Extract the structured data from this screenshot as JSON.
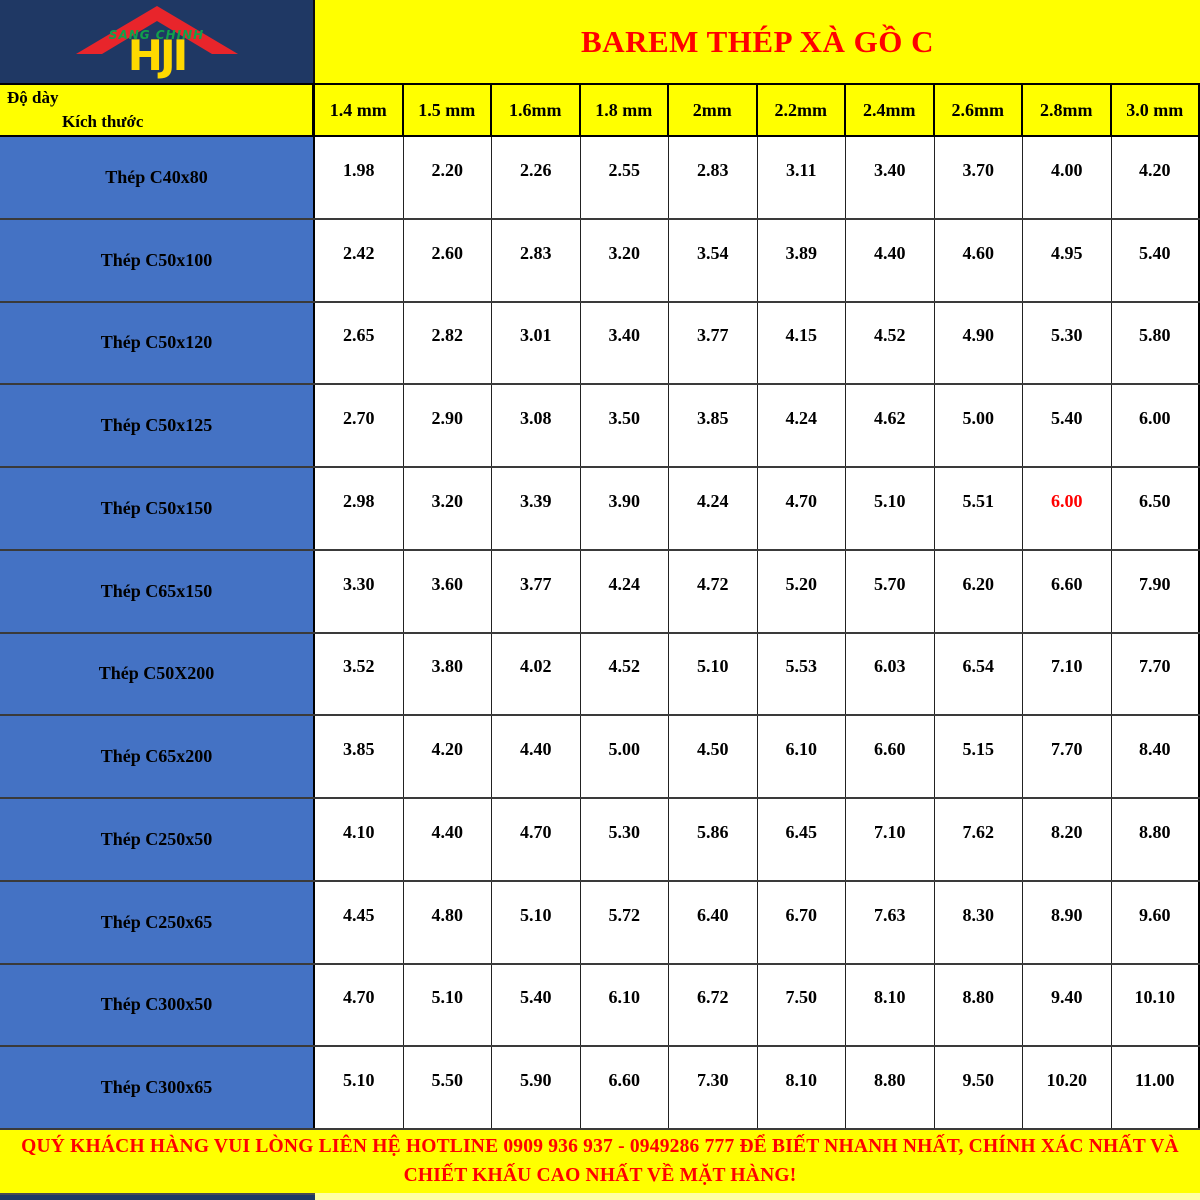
{
  "logo": {
    "brand_top": "SANG CHINH",
    "brand_main": "HJI",
    "roof_color": "#E8252B",
    "background": "#1F3864"
  },
  "title": "BAREM THÉP XÀ GỒ C",
  "corner": {
    "top_label": "Độ dày",
    "bottom_label": "Kích thước"
  },
  "columns": [
    "1.4 mm",
    "1.5 mm",
    "1.6mm",
    "1.8 mm",
    "2mm",
    "2.2mm",
    "2.4mm",
    "2.6mm",
    "2.8mm",
    "3.0 mm"
  ],
  "rows": [
    {
      "label": "Thép C40x80",
      "values": [
        "1.98",
        "2.20",
        "2.26",
        "2.55",
        "2.83",
        "3.11",
        "3.40",
        "3.70",
        "4.00",
        "4.20"
      ]
    },
    {
      "label": "Thép C50x100",
      "values": [
        "2.42",
        "2.60",
        "2.83",
        "3.20",
        "3.54",
        "3.89",
        "4.40",
        "4.60",
        "4.95",
        "5.40"
      ]
    },
    {
      "label": "Thép C50x120",
      "values": [
        "2.65",
        "2.82",
        "3.01",
        "3.40",
        "3.77",
        "4.15",
        "4.52",
        "4.90",
        "5.30",
        "5.80"
      ]
    },
    {
      "label": "Thép C50x125",
      "values": [
        "2.70",
        "2.90",
        "3.08",
        "3.50",
        "3.85",
        "4.24",
        "4.62",
        "5.00",
        "5.40",
        "6.00"
      ]
    },
    {
      "label": "Thép C50x150",
      "values": [
        "2.98",
        "3.20",
        "3.39",
        "3.90",
        "4.24",
        "4.70",
        "5.10",
        "5.51",
        "6.00",
        "6.50"
      ]
    },
    {
      "label": "Thép C65x150",
      "values": [
        "3.30",
        "3.60",
        "3.77",
        "4.24",
        "4.72",
        "5.20",
        "5.70",
        "6.20",
        "6.60",
        "7.90"
      ]
    },
    {
      "label": "Thép C50X200",
      "values": [
        "3.52",
        "3.80",
        "4.02",
        "4.52",
        "5.10",
        "5.53",
        "6.03",
        "6.54",
        "7.10",
        "7.70"
      ]
    },
    {
      "label": "Thép C65x200",
      "values": [
        "3.85",
        "4.20",
        "4.40",
        "5.00",
        "4.50",
        "6.10",
        "6.60",
        "5.15",
        "7.70",
        "8.40"
      ]
    },
    {
      "label": "Thép C250x50",
      "values": [
        "4.10",
        "4.40",
        "4.70",
        "5.30",
        "5.86",
        "6.45",
        "7.10",
        "7.62",
        "8.20",
        "8.80"
      ]
    },
    {
      "label": "Thép C250x65",
      "values": [
        "4.45",
        "4.80",
        "5.10",
        "5.72",
        "6.40",
        "6.70",
        "7.63",
        "8.30",
        "8.90",
        "9.60"
      ]
    },
    {
      "label": "Thép C300x50",
      "values": [
        "4.70",
        "5.10",
        "5.40",
        "6.10",
        "6.72",
        "7.50",
        "8.10",
        "8.80",
        "9.40",
        "10.10"
      ]
    },
    {
      "label": "Thép C300x65",
      "values": [
        "5.10",
        "5.50",
        "5.90",
        "6.60",
        "7.30",
        "8.10",
        "8.80",
        "9.50",
        "10.20",
        "11.00"
      ]
    }
  ],
  "highlight": {
    "row_index": 4,
    "value_index": 8,
    "color": "#FF0000"
  },
  "footer": {
    "note": "QUÝ KHÁCH HÀNG VUI LÒNG LIÊN HỆ HOTLINE 0909 936 937 - 0949286 777 ĐỂ BIẾT NHANH NHẤT, CHÍNH XÁC NHẤT VÀ CHIẾT KHẤU CAO NHẤT VỀ MẶT HÀNG!"
  },
  "colors": {
    "band_yellow": "#FFFF00",
    "title_red": "#FF0000",
    "label_blue": "#4472C4",
    "logo_navy": "#1F3864",
    "brand_green": "#12A14B",
    "brand_yellow": "#FFD900",
    "highlight_red": "#FF0000"
  },
  "chart_data": {
    "type": "table",
    "title": "BAREM THÉP XÀ GỒ C",
    "row_header": "Kích thước",
    "column_header": "Độ dày",
    "columns": [
      "1.4 mm",
      "1.5 mm",
      "1.6mm",
      "1.8 mm",
      "2mm",
      "2.2mm",
      "2.4mm",
      "2.6mm",
      "2.8mm",
      "3.0 mm"
    ],
    "rows": [
      [
        "Thép C40x80",
        1.98,
        2.2,
        2.26,
        2.55,
        2.83,
        3.11,
        3.4,
        3.7,
        4.0,
        4.2
      ],
      [
        "Thép C50x100",
        2.42,
        2.6,
        2.83,
        3.2,
        3.54,
        3.89,
        4.4,
        4.6,
        4.95,
        5.4
      ],
      [
        "Thép C50x120",
        2.65,
        2.82,
        3.01,
        3.4,
        3.77,
        4.15,
        4.52,
        4.9,
        5.3,
        5.8
      ],
      [
        "Thép C50x125",
        2.7,
        2.9,
        3.08,
        3.5,
        3.85,
        4.24,
        4.62,
        5.0,
        5.4,
        6.0
      ],
      [
        "Thép C50x150",
        2.98,
        3.2,
        3.39,
        3.9,
        4.24,
        4.7,
        5.1,
        5.51,
        6.0,
        6.5
      ],
      [
        "Thép C65x150",
        3.3,
        3.6,
        3.77,
        4.24,
        4.72,
        5.2,
        5.7,
        6.2,
        6.6,
        7.9
      ],
      [
        "Thép C50X200",
        3.52,
        3.8,
        4.02,
        4.52,
        5.1,
        5.53,
        6.03,
        6.54,
        7.1,
        7.7
      ],
      [
        "Thép C65x200",
        3.85,
        4.2,
        4.4,
        5.0,
        4.5,
        6.1,
        6.6,
        5.15,
        7.7,
        8.4
      ],
      [
        "Thép C250x50",
        4.1,
        4.4,
        4.7,
        5.3,
        5.86,
        6.45,
        7.1,
        7.62,
        8.2,
        8.8
      ],
      [
        "Thép C250x65",
        4.45,
        4.8,
        5.1,
        5.72,
        6.4,
        6.7,
        7.63,
        8.3,
        8.9,
        9.6
      ],
      [
        "Thép C300x50",
        4.7,
        5.1,
        5.4,
        6.1,
        6.72,
        7.5,
        8.1,
        8.8,
        9.4,
        10.1
      ],
      [
        "Thép C300x65",
        5.1,
        5.5,
        5.9,
        6.6,
        7.3,
        8.1,
        8.8,
        9.5,
        10.2,
        11.0
      ]
    ]
  }
}
